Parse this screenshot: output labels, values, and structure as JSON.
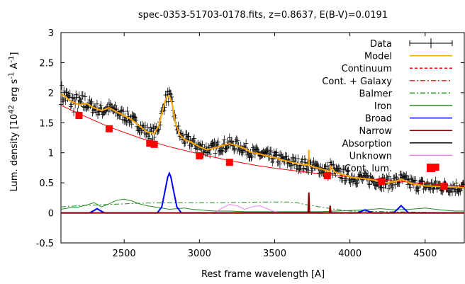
{
  "chart_data": {
    "type": "line",
    "title": "spec-0353-51703-0178.fits, z=0.8637, E(B-V)=0.0191",
    "xlabel": "Rest frame wavelength [A]",
    "ylabel_parts": [
      "Lum. density [10",
      "42",
      " erg s",
      "-1",
      " A",
      "-1",
      "]"
    ],
    "xlim": [
      2080,
      4760
    ],
    "ylim": [
      -0.5,
      3
    ],
    "x_ticks": [
      2500,
      3000,
      3500,
      4000,
      4500
    ],
    "y_ticks": [
      -0.5,
      0,
      0.5,
      1,
      1.5,
      2,
      2.5,
      3
    ],
    "grid": false,
    "legend_position": "top-right",
    "legend": [
      {
        "label": "Data",
        "color": "#000000",
        "style": "errorbar"
      },
      {
        "label": "Model",
        "color": "#ffa500",
        "style": "solid"
      },
      {
        "label": "Continuum",
        "color": "#ff0000",
        "style": "dashed"
      },
      {
        "label": "Cont. + Galaxy",
        "color": "#ff2020",
        "style": "dashdot"
      },
      {
        "label": "Balmer",
        "color": "#228b22",
        "style": "dashdot"
      },
      {
        "label": "Iron",
        "color": "#228b22",
        "style": "solid"
      },
      {
        "label": "Broad",
        "color": "#0000ff",
        "style": "solid"
      },
      {
        "label": "Narrow",
        "color": "#8b0000",
        "style": "solid"
      },
      {
        "label": "Absorption",
        "color": "#000000",
        "style": "solid"
      },
      {
        "label": "Unknown",
        "color": "#ee82ee",
        "style": "solid"
      },
      {
        "label": "Cont. lum.",
        "color": "#ff0000",
        "style": "square"
      }
    ],
    "series": [
      {
        "name": "Model",
        "x": [
          2080,
          2100,
          2150,
          2200,
          2250,
          2300,
          2350,
          2400,
          2450,
          2500,
          2550,
          2600,
          2650,
          2700,
          2730,
          2760,
          2780,
          2800,
          2820,
          2840,
          2870,
          2900,
          2950,
          3000,
          3050,
          3100,
          3150,
          3200,
          3250,
          3300,
          3350,
          3400,
          3450,
          3500,
          3550,
          3600,
          3650,
          3700,
          3726,
          3727,
          3728,
          3750,
          3800,
          3850,
          3868,
          3870,
          3900,
          3950,
          4000,
          4050,
          4100,
          4150,
          4200,
          4250,
          4300,
          4340,
          4380,
          4420,
          4500,
          4600,
          4700,
          4760
        ],
        "y": [
          1.98,
          1.95,
          1.85,
          1.8,
          1.82,
          1.75,
          1.7,
          1.75,
          1.68,
          1.62,
          1.55,
          1.45,
          1.35,
          1.32,
          1.45,
          1.75,
          1.92,
          1.95,
          1.8,
          1.5,
          1.3,
          1.22,
          1.17,
          1.1,
          1.05,
          1.08,
          1.12,
          1.15,
          1.12,
          1.07,
          1.0,
          0.98,
          0.95,
          0.92,
          0.88,
          0.85,
          0.82,
          0.8,
          0.8,
          1.05,
          0.8,
          0.77,
          0.74,
          0.7,
          0.68,
          0.78,
          0.68,
          0.64,
          0.6,
          0.58,
          0.57,
          0.55,
          0.52,
          0.5,
          0.52,
          0.56,
          0.52,
          0.48,
          0.45,
          0.44,
          0.43,
          0.42
        ]
      },
      {
        "name": "Continuum",
        "x": [
          2080,
          2200,
          2400,
          2600,
          2800,
          3000,
          3200,
          3400,
          3600,
          3800,
          4000,
          4200,
          4400,
          4600,
          4760
        ],
        "y": [
          1.79,
          1.65,
          1.43,
          1.25,
          1.1,
          0.98,
          0.87,
          0.78,
          0.71,
          0.65,
          0.6,
          0.55,
          0.51,
          0.47,
          0.45
        ]
      },
      {
        "name": "Balmer",
        "x": [
          2080,
          2200,
          2400,
          2600,
          2800,
          3000,
          3200,
          3400,
          3500,
          3600,
          3646,
          3700,
          3800,
          3900,
          4000,
          4760
        ],
        "y": [
          0.1,
          0.12,
          0.14,
          0.16,
          0.17,
          0.17,
          0.17,
          0.18,
          0.18,
          0.18,
          0.17,
          0.14,
          0.1,
          0.06,
          0.03,
          0.0
        ]
      },
      {
        "name": "Iron",
        "x": [
          2080,
          2150,
          2200,
          2250,
          2300,
          2350,
          2400,
          2450,
          2500,
          2550,
          2600,
          2650,
          2700,
          2750,
          2800,
          2850,
          2900,
          2950,
          3000,
          3050,
          3100,
          3150,
          3200,
          3300,
          3400,
          3500,
          3600,
          3700,
          3800,
          3900,
          4000,
          4100,
          4200,
          4300,
          4400,
          4500,
          4600,
          4700,
          4760
        ],
        "y": [
          0.06,
          0.09,
          0.1,
          0.13,
          0.17,
          0.1,
          0.15,
          0.21,
          0.23,
          0.2,
          0.15,
          0.12,
          0.1,
          0.08,
          0.06,
          0.07,
          0.08,
          0.06,
          0.05,
          0.04,
          0.03,
          0.03,
          0.03,
          0.02,
          0.02,
          0.02,
          0.02,
          0.02,
          0.02,
          0.03,
          0.04,
          0.05,
          0.07,
          0.05,
          0.06,
          0.08,
          0.05,
          0.03,
          0.03
        ]
      },
      {
        "name": "Broad",
        "x": [
          2080,
          2270,
          2300,
          2320,
          2340,
          2370,
          2720,
          2750,
          2770,
          2790,
          2800,
          2810,
          2830,
          2850,
          2880,
          4050,
          4080,
          4100,
          4120,
          4150,
          4290,
          4320,
          4340,
          4360,
          4390,
          4760
        ],
        "y": [
          0.0,
          0.0,
          0.04,
          0.07,
          0.04,
          0.0,
          0.0,
          0.1,
          0.35,
          0.6,
          0.66,
          0.6,
          0.35,
          0.1,
          0.0,
          0.0,
          0.03,
          0.05,
          0.03,
          0.0,
          0.0,
          0.07,
          0.12,
          0.07,
          0.0,
          0.0
        ]
      },
      {
        "name": "Narrow",
        "x": [
          2080,
          3722,
          3727,
          3732,
          3864,
          3869,
          3874,
          4760
        ],
        "y": [
          0.0,
          0.0,
          0.34,
          0.0,
          0.0,
          0.12,
          0.0,
          0.0
        ]
      },
      {
        "name": "Unknown",
        "x": [
          2080,
          3100,
          3150,
          3200,
          3250,
          3300,
          3350,
          3400,
          3450,
          3500,
          3550,
          4760
        ],
        "y": [
          0.0,
          0.0,
          0.08,
          0.14,
          0.12,
          0.06,
          0.1,
          0.12,
          0.07,
          0.02,
          0.0,
          0.0
        ]
      },
      {
        "name": "Cont. lum.",
        "x": [
          2200,
          2400,
          2670,
          2700,
          3000,
          3200,
          3850,
          4210,
          4570,
          4625
        ],
        "y": [
          1.62,
          1.4,
          1.16,
          1.14,
          0.95,
          0.84,
          0.62,
          0.52,
          0.76,
          0.44
        ]
      }
    ]
  }
}
